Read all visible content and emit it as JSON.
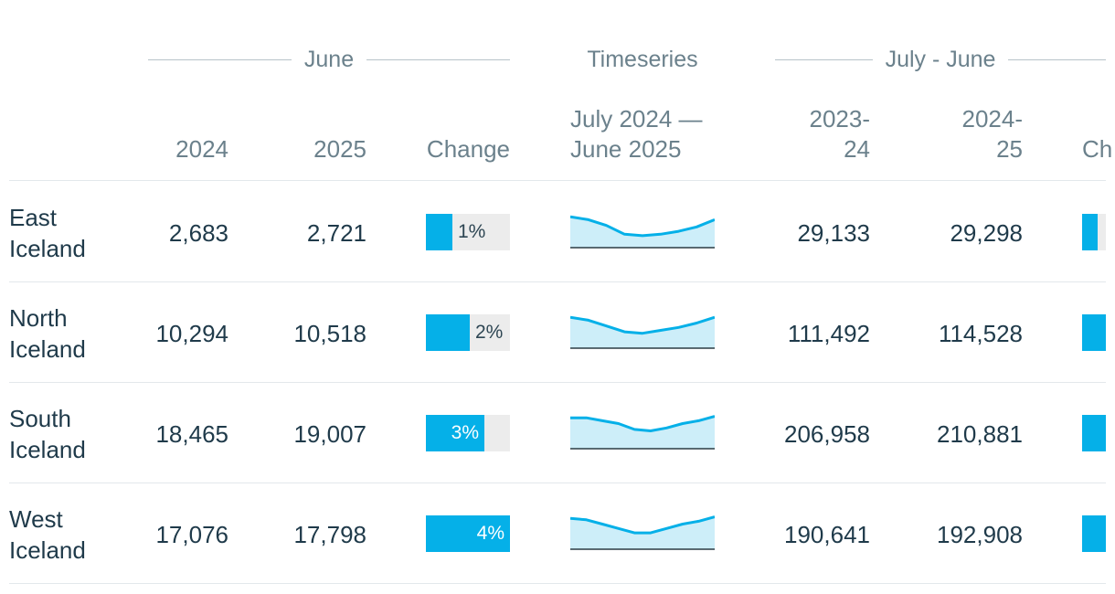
{
  "headers": {
    "group_june": "June",
    "group_timeseries": "Timeseries",
    "group_julyjune": "July - June",
    "col_2024": "2024",
    "col_2025": "2025",
    "col_change": "Change",
    "col_series_line1": "July 2024 —",
    "col_series_line2": "June 2025",
    "col_2023_24_line1": "2023-",
    "col_2023_24_line2": "24",
    "col_2024_25_line1": "2024-",
    "col_2024_25_line2": "25",
    "col_change2": "Ch"
  },
  "rows": [
    {
      "name_line1": "East",
      "name_line2": "Iceland",
      "june_2024": "2,683",
      "june_2025": "2,721",
      "change": "1%",
      "change_fraction": 0.31,
      "series": [
        10,
        9,
        7,
        4,
        3.5,
        4,
        5,
        6.5,
        9
      ],
      "jj_2023_24": "29,133",
      "jj_2024_25": "29,298",
      "change2_fraction": 0.18
    },
    {
      "name_line1": "North",
      "name_line2": "Iceland",
      "june_2024": "10,294",
      "june_2025": "10,518",
      "change": "2%",
      "change_fraction": 0.52,
      "series": [
        10,
        9,
        7,
        5,
        4.5,
        5.5,
        6.5,
        8,
        10
      ],
      "jj_2023_24": "111,492",
      "jj_2024_25": "114,528",
      "change2_fraction": 0.32
    },
    {
      "name_line1": "South",
      "name_line2": "Iceland",
      "june_2024": "18,465",
      "june_2025": "19,007",
      "change": "3%",
      "change_fraction": 0.7,
      "series": [
        10,
        10,
        9,
        8,
        6,
        5.5,
        6.5,
        8,
        9,
        10.5
      ],
      "jj_2023_24": "206,958",
      "jj_2024_25": "210,881",
      "change2_fraction": 0.32
    },
    {
      "name_line1": "West",
      "name_line2": "Iceland",
      "june_2024": "17,076",
      "june_2025": "17,798",
      "change": "4%",
      "change_fraction": 1.0,
      "series": [
        10,
        9.5,
        8,
        6.5,
        5,
        5,
        6.5,
        8,
        9,
        10.5
      ],
      "jj_2023_24": "190,641",
      "jj_2024_25": "192,908",
      "change2_fraction": 0.32
    }
  ],
  "colors": {
    "accent": "#05b0e8",
    "spark_fill": "#cdeef9",
    "bar_bg": "#ececec",
    "text": "#1f3a4a",
    "muted": "#6b818c"
  }
}
